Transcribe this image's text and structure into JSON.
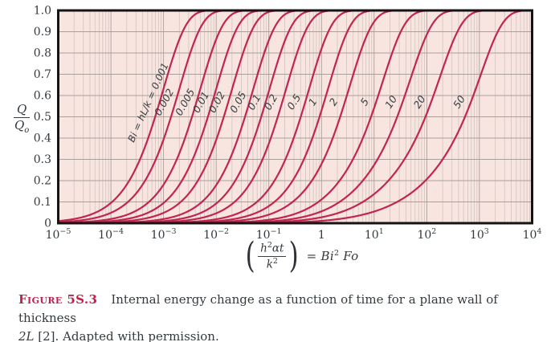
{
  "figure": {
    "caption_label": "Figure 5S.3",
    "caption_text": "Internal energy change as a function of time for a plane wall of thickness",
    "caption_italic": "2L",
    "caption_rest": " [2]. Adapted with permission."
  },
  "colors": {
    "curve": "#c22550",
    "plot_bg": "#f8e5df",
    "grid_major": "#a9a09c",
    "grid_minor": "#cfc4c0",
    "border": "#141414",
    "text": "#343a3e",
    "curve_label": "#3a3f44",
    "caption_label": "#c41f4b"
  },
  "y_axis": {
    "title_numerator": "Q",
    "title_denominator": "Q",
    "title_denominator_sub": "o",
    "ticks": [
      "0",
      "0.1",
      "0.2",
      "0.3",
      "0.4",
      "0.5",
      "0.6",
      "0.7",
      "0.8",
      "0.9",
      "1.0"
    ]
  },
  "x_axis": {
    "tick_exponents": [
      -5,
      -4,
      -3,
      -2,
      -1,
      0,
      1,
      2,
      3,
      4
    ],
    "title": {
      "lparen": "(",
      "numerator_base": "h",
      "numerator_sup": "2",
      "numerator_rest": "αt",
      "denominator_base": "k",
      "denominator_sup": "2",
      "rparen": ")",
      "equals": "=",
      "rhs_base": "Bi",
      "rhs_sup": "2",
      "rhs_rest": "Fo"
    }
  },
  "chart_data": {
    "type": "line",
    "x_scale": "log10",
    "x_range": [
      1e-05,
      10000.0
    ],
    "y_range": [
      0,
      1
    ],
    "x_variable": "(h²αt/k²) = Bi²·Fo",
    "y_variable": "Q/Qo",
    "curves_parameter": "Bi = hL/k",
    "bi_values": [
      0.001,
      0.002,
      0.005,
      0.01,
      0.02,
      0.05,
      0.1,
      0.2,
      0.5,
      1,
      2,
      5,
      10,
      20,
      50
    ],
    "first_curve_label": "Bi = hL/k = 0.001",
    "grid": "log minor + decade major verticals, 0.1-step horizontals",
    "model": "Plane-wall transient conduction: Q/Qo = 1 - Σn [4·sin²ζn / (ζn(2ζn + sin 2ζn))]·exp(-ζn²·Fo), where ζn·tan ζn = Bi and Fo = x/Bi²; each curve rises sigmoidally from 0 to 1, crossing Q/Qo = 0.5 near x ≈ 0.8·Bi for small Bi (e.g. 0.001 curve at ~7e-4, 1 at ~1.0, 50 at ~5e2)"
  }
}
